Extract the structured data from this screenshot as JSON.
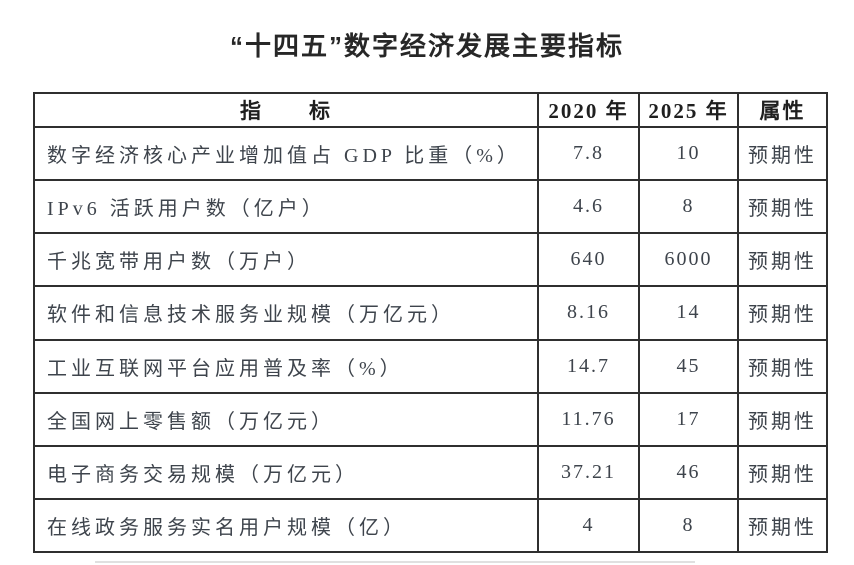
{
  "page": {
    "title": "“十四五”数字经济发展主要指标"
  },
  "table": {
    "headers": [
      "指　　标",
      "2020 年",
      "2025 年",
      "属性"
    ],
    "rows": [
      {
        "indicator": "数字经济核心产业增加值占 GDP 比重（%）",
        "y2020": "7.8",
        "y2025": "10",
        "attribute": "预期性"
      },
      {
        "indicator": "IPv6 活跃用户数（亿户）",
        "y2020": "4.6",
        "y2025": "8",
        "attribute": "预期性"
      },
      {
        "indicator": "千兆宽带用户数（万户）",
        "y2020": "640",
        "y2025": "6000",
        "attribute": "预期性"
      },
      {
        "indicator": "软件和信息技术服务业规模（万亿元）",
        "y2020": "8.16",
        "y2025": "14",
        "attribute": "预期性"
      },
      {
        "indicator": "工业互联网平台应用普及率（%）",
        "y2020": "14.7",
        "y2025": "45",
        "attribute": "预期性"
      },
      {
        "indicator": "全国网上零售额（万亿元）",
        "y2020": "11.76",
        "y2025": "17",
        "attribute": "预期性"
      },
      {
        "indicator": "电子商务交易规模（万亿元）",
        "y2020": "37.21",
        "y2025": "46",
        "attribute": "预期性"
      },
      {
        "indicator": "在线政务服务实名用户规模（亿）",
        "y2020": "4",
        "y2025": "8",
        "attribute": "预期性"
      }
    ]
  },
  "colors": {
    "border": "#2f2f2f",
    "title_text": "#272727",
    "header_text": "#1f1f1f",
    "cell_text": "#3e444c",
    "background": "#ffffff"
  }
}
